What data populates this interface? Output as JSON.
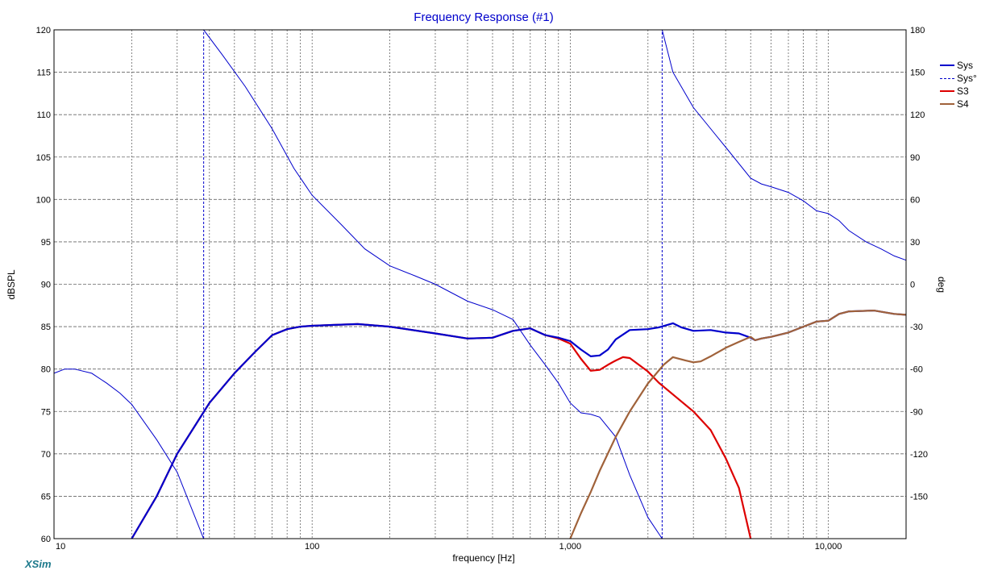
{
  "chart_data": {
    "type": "line",
    "title": "Frequency Response (#1)",
    "xlabel": "frequency [Hz]",
    "ylabel_left": "dBSPL",
    "ylabel_right": "deg",
    "x_scale": "log",
    "xlim": [
      10,
      20000
    ],
    "ylim_left": [
      60,
      120
    ],
    "ylim_right": [
      -180,
      180
    ],
    "x_tick_labels": [
      {
        "value": 10,
        "label": "10"
      },
      {
        "value": 100,
        "label": "100"
      },
      {
        "value": 1000,
        "label": "1,000"
      },
      {
        "value": 10000,
        "label": "10,000"
      }
    ],
    "y_left_ticks": [
      60,
      65,
      70,
      75,
      80,
      85,
      90,
      95,
      100,
      105,
      110,
      115,
      120
    ],
    "y_right_ticks": [
      -150,
      -120,
      -90,
      -60,
      -30,
      0,
      30,
      60,
      90,
      120,
      150,
      180
    ],
    "grid": true,
    "legend_position": "right",
    "series": [
      {
        "name": "Sys",
        "axis": "left",
        "color": "#0000cc",
        "style": "solid",
        "points": [
          [
            20,
            60
          ],
          [
            25,
            65
          ],
          [
            30,
            70
          ],
          [
            40,
            76
          ],
          [
            50,
            79.5
          ],
          [
            60,
            82
          ],
          [
            70,
            84
          ],
          [
            80,
            84.7
          ],
          [
            90,
            85
          ],
          [
            100,
            85.1
          ],
          [
            120,
            85.2
          ],
          [
            150,
            85.3
          ],
          [
            200,
            85
          ],
          [
            300,
            84.2
          ],
          [
            400,
            83.6
          ],
          [
            500,
            83.7
          ],
          [
            600,
            84.5
          ],
          [
            700,
            84.8
          ],
          [
            800,
            84
          ],
          [
            900,
            83.7
          ],
          [
            1000,
            83.3
          ],
          [
            1100,
            82.3
          ],
          [
            1200,
            81.5
          ],
          [
            1300,
            81.6
          ],
          [
            1400,
            82.3
          ],
          [
            1500,
            83.5
          ],
          [
            1700,
            84.6
          ],
          [
            2000,
            84.7
          ],
          [
            2200,
            84.9
          ],
          [
            2500,
            85.4
          ],
          [
            2700,
            84.9
          ],
          [
            3000,
            84.5
          ],
          [
            3500,
            84.6
          ],
          [
            4000,
            84.3
          ],
          [
            4500,
            84.2
          ],
          [
            5000,
            83.7
          ],
          [
            5200,
            83.4
          ],
          [
            5500,
            83.6
          ],
          [
            6000,
            83.8
          ],
          [
            7000,
            84.3
          ],
          [
            8000,
            85
          ],
          [
            9000,
            85.6
          ],
          [
            10000,
            85.7
          ],
          [
            11000,
            86.5
          ],
          [
            12000,
            86.8
          ],
          [
            15000,
            86.9
          ],
          [
            18000,
            86.5
          ],
          [
            20000,
            86.4
          ]
        ]
      },
      {
        "name": "Sys°",
        "axis": "right",
        "color": "#0000cc",
        "style": "dashed",
        "segments": [
          [
            [
              10,
              -63
            ],
            [
              11,
              -60
            ],
            [
              12,
              -60
            ],
            [
              14,
              -63
            ],
            [
              16,
              -70
            ],
            [
              18,
              -77
            ],
            [
              20,
              -85
            ],
            [
              25,
              -110
            ],
            [
              30,
              -133
            ],
            [
              38,
              -180
            ]
          ],
          [
            [
              38,
              180
            ],
            [
              45,
              162
            ],
            [
              55,
              140
            ],
            [
              70,
              110
            ],
            [
              85,
              82
            ],
            [
              100,
              63
            ],
            [
              130,
              42
            ],
            [
              160,
              25
            ],
            [
              200,
              13
            ],
            [
              250,
              6
            ],
            [
              300,
              0
            ],
            [
              400,
              -12
            ],
            [
              500,
              -18
            ],
            [
              600,
              -25
            ],
            [
              700,
              -43
            ],
            [
              800,
              -57
            ],
            [
              900,
              -70
            ],
            [
              1000,
              -84
            ],
            [
              1100,
              -91
            ],
            [
              1200,
              -92
            ],
            [
              1300,
              -94
            ],
            [
              1500,
              -108
            ],
            [
              1700,
              -135
            ],
            [
              2000,
              -165
            ],
            [
              2270,
              -180
            ]
          ],
          [
            [
              2270,
              180
            ],
            [
              2500,
              150
            ],
            [
              3000,
              125
            ],
            [
              4000,
              97
            ],
            [
              5000,
              75
            ],
            [
              5500,
              71
            ],
            [
              6000,
              69
            ],
            [
              7000,
              65
            ],
            [
              8000,
              59
            ],
            [
              9000,
              52
            ],
            [
              10000,
              50
            ],
            [
              11000,
              45
            ],
            [
              12000,
              38
            ],
            [
              14000,
              30
            ],
            [
              16000,
              25
            ],
            [
              18000,
              20
            ],
            [
              20000,
              17
            ]
          ]
        ]
      },
      {
        "name": "S3",
        "axis": "left",
        "color": "#dd0000",
        "style": "solid",
        "points": [
          [
            20,
            60
          ],
          [
            25,
            65
          ],
          [
            30,
            70
          ],
          [
            40,
            76
          ],
          [
            50,
            79.5
          ],
          [
            60,
            82
          ],
          [
            70,
            84
          ],
          [
            80,
            84.7
          ],
          [
            90,
            85
          ],
          [
            100,
            85.1
          ],
          [
            120,
            85.2
          ],
          [
            150,
            85.3
          ],
          [
            200,
            85
          ],
          [
            300,
            84.2
          ],
          [
            400,
            83.6
          ],
          [
            500,
            83.7
          ],
          [
            600,
            84.5
          ],
          [
            700,
            84.8
          ],
          [
            800,
            84
          ],
          [
            900,
            83.6
          ],
          [
            1000,
            83
          ],
          [
            1100,
            81.2
          ],
          [
            1200,
            79.8
          ],
          [
            1300,
            79.9
          ],
          [
            1400,
            80.5
          ],
          [
            1500,
            81
          ],
          [
            1600,
            81.4
          ],
          [
            1700,
            81.3
          ],
          [
            2000,
            79.7
          ],
          [
            2200,
            78.4
          ],
          [
            2500,
            77
          ],
          [
            3000,
            75
          ],
          [
            3500,
            72.8
          ],
          [
            4000,
            69.5
          ],
          [
            4500,
            66
          ],
          [
            5000,
            60
          ]
        ]
      },
      {
        "name": "S4",
        "axis": "left",
        "color": "#a0623a",
        "style": "solid",
        "points": [
          [
            1000,
            60
          ],
          [
            1100,
            63
          ],
          [
            1200,
            65.5
          ],
          [
            1300,
            68
          ],
          [
            1500,
            72
          ],
          [
            1700,
            75
          ],
          [
            2000,
            78.3
          ],
          [
            2300,
            80.5
          ],
          [
            2500,
            81.4
          ],
          [
            2800,
            81
          ],
          [
            3000,
            80.8
          ],
          [
            3200,
            80.9
          ],
          [
            3500,
            81.5
          ],
          [
            4000,
            82.5
          ],
          [
            4500,
            83.2
          ],
          [
            5000,
            83.8
          ],
          [
            5200,
            83.4
          ],
          [
            5500,
            83.6
          ],
          [
            6000,
            83.8
          ],
          [
            7000,
            84.3
          ],
          [
            8000,
            85
          ],
          [
            9000,
            85.6
          ],
          [
            10000,
            85.7
          ],
          [
            11000,
            86.5
          ],
          [
            12000,
            86.8
          ],
          [
            15000,
            86.9
          ],
          [
            18000,
            86.5
          ],
          [
            20000,
            86.4
          ]
        ]
      }
    ]
  },
  "brand": "XSim"
}
